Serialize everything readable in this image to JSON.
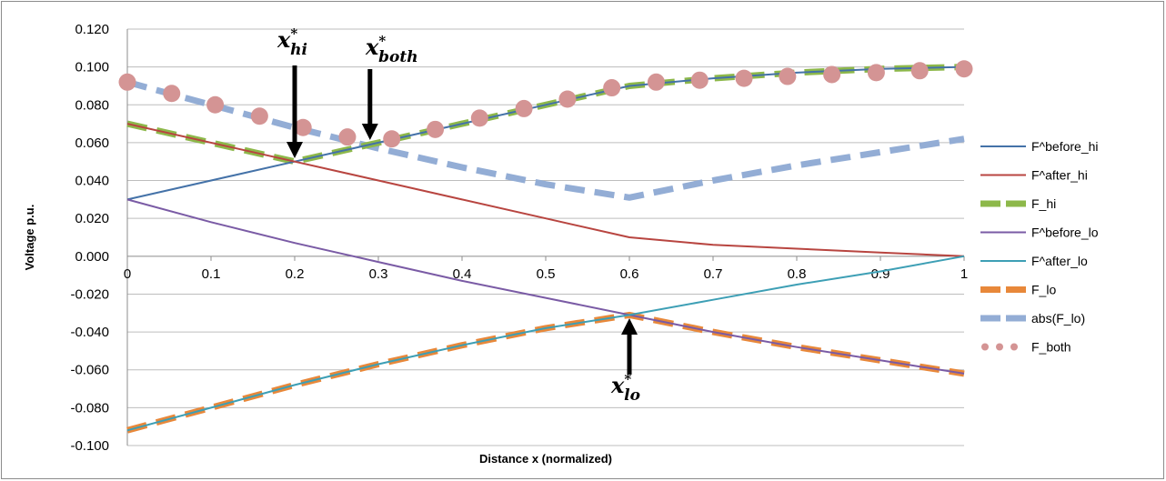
{
  "chart_data": {
    "type": "line",
    "title": "",
    "xlabel": "Distance x (normalized)",
    "ylabel": "Voltage p.u.",
    "xlim": [
      0,
      1
    ],
    "ylim": [
      -0.1,
      0.12
    ],
    "grid": true,
    "legend_position": "right",
    "x_ticks": [
      "0",
      "0.1",
      "0.2",
      "0.3",
      "0.4",
      "0.5",
      "0.6",
      "0.7",
      "0.8",
      "0.9",
      "1"
    ],
    "y_ticks": [
      "0.120",
      "0.100",
      "0.080",
      "0.060",
      "0.040",
      "0.020",
      "0.000",
      "-0.020",
      "-0.040",
      "-0.060",
      "-0.080",
      "-0.100"
    ],
    "series": [
      {
        "name": "F^before_hi",
        "color": "#4472a8",
        "style": "solid",
        "points": [
          [
            0,
            0.03
          ],
          [
            0.2,
            0.05
          ],
          [
            0.3,
            0.06
          ],
          [
            0.4,
            0.07
          ],
          [
            0.5,
            0.08
          ],
          [
            0.6,
            0.09
          ],
          [
            0.7,
            0.094
          ],
          [
            0.8,
            0.097
          ],
          [
            0.9,
            0.099
          ],
          [
            1.0,
            0.1
          ]
        ]
      },
      {
        "name": "F^after_hi",
        "color": "#b84540",
        "style": "solid",
        "points": [
          [
            0,
            0.07
          ],
          [
            0.2,
            0.05
          ],
          [
            0.3,
            0.04
          ],
          [
            0.4,
            0.03
          ],
          [
            0.5,
            0.02
          ],
          [
            0.6,
            0.01
          ],
          [
            0.7,
            0.006
          ],
          [
            0.8,
            0.004
          ],
          [
            0.9,
            0.002
          ],
          [
            1.0,
            0.0
          ]
        ]
      },
      {
        "name": "F_hi",
        "color": "#8db84a",
        "style": "dashed",
        "points": [
          [
            0,
            0.07
          ],
          [
            0.1,
            0.06
          ],
          [
            0.2,
            0.05
          ],
          [
            0.3,
            0.06
          ],
          [
            0.4,
            0.07
          ],
          [
            0.5,
            0.08
          ],
          [
            0.6,
            0.09
          ],
          [
            0.7,
            0.094
          ],
          [
            0.8,
            0.097
          ],
          [
            0.9,
            0.099
          ],
          [
            1.0,
            0.1
          ]
        ]
      },
      {
        "name": "F^before_lo",
        "color": "#7a5ba5",
        "style": "solid",
        "points": [
          [
            0,
            0.03
          ],
          [
            0.1,
            0.018
          ],
          [
            0.2,
            0.007
          ],
          [
            0.3,
            -0.003
          ],
          [
            0.4,
            -0.013
          ],
          [
            0.5,
            -0.022
          ],
          [
            0.6,
            -0.031
          ],
          [
            0.7,
            -0.04
          ],
          [
            0.8,
            -0.048
          ],
          [
            0.9,
            -0.055
          ],
          [
            1.0,
            -0.062
          ]
        ]
      },
      {
        "name": "F^after_lo",
        "color": "#3d9fb5",
        "style": "solid",
        "points": [
          [
            0,
            -0.092
          ],
          [
            0.1,
            -0.08
          ],
          [
            0.2,
            -0.068
          ],
          [
            0.3,
            -0.057
          ],
          [
            0.4,
            -0.047
          ],
          [
            0.5,
            -0.038
          ],
          [
            0.6,
            -0.031
          ],
          [
            0.7,
            -0.023
          ],
          [
            0.8,
            -0.015
          ],
          [
            0.9,
            -0.008
          ],
          [
            1.0,
            0.0
          ]
        ]
      },
      {
        "name": "F_lo",
        "color": "#e8883a",
        "style": "dashed",
        "points": [
          [
            0,
            -0.092
          ],
          [
            0.1,
            -0.08
          ],
          [
            0.2,
            -0.068
          ],
          [
            0.3,
            -0.057
          ],
          [
            0.4,
            -0.047
          ],
          [
            0.5,
            -0.038
          ],
          [
            0.6,
            -0.031
          ],
          [
            0.7,
            -0.04
          ],
          [
            0.8,
            -0.048
          ],
          [
            0.9,
            -0.055
          ],
          [
            1.0,
            -0.062
          ]
        ]
      },
      {
        "name": "abs(F_lo)",
        "color": "#93add5",
        "style": "dashed",
        "points": [
          [
            0,
            0.092
          ],
          [
            0.1,
            0.08
          ],
          [
            0.2,
            0.068
          ],
          [
            0.3,
            0.057
          ],
          [
            0.4,
            0.047
          ],
          [
            0.5,
            0.038
          ],
          [
            0.6,
            0.031
          ],
          [
            0.7,
            0.04
          ],
          [
            0.8,
            0.048
          ],
          [
            0.9,
            0.055
          ],
          [
            1.0,
            0.062
          ]
        ]
      },
      {
        "name": "F_both",
        "color": "#d49494",
        "style": "dots",
        "points": [
          [
            0,
            0.092
          ],
          [
            0.053,
            0.086
          ],
          [
            0.105,
            0.08
          ],
          [
            0.158,
            0.074
          ],
          [
            0.21,
            0.068
          ],
          [
            0.263,
            0.063
          ],
          [
            0.316,
            0.062
          ],
          [
            0.368,
            0.067
          ],
          [
            0.421,
            0.073
          ],
          [
            0.474,
            0.078
          ],
          [
            0.526,
            0.083
          ],
          [
            0.579,
            0.089
          ],
          [
            0.632,
            0.092
          ],
          [
            0.684,
            0.093
          ],
          [
            0.737,
            0.094
          ],
          [
            0.789,
            0.095
          ],
          [
            0.842,
            0.096
          ],
          [
            0.895,
            0.097
          ],
          [
            0.947,
            0.098
          ],
          [
            1.0,
            0.099
          ]
        ]
      }
    ],
    "annotations": [
      {
        "base": "x",
        "sup": "*",
        "sub": "hi",
        "x": 0.2,
        "y": 0.05,
        "dir": "down"
      },
      {
        "base": "x",
        "sup": "*",
        "sub": "both",
        "x": 0.29,
        "y": 0.058,
        "dir": "down"
      },
      {
        "base": "x",
        "sup": "*",
        "sub": "lo",
        "x": 0.6,
        "y": -0.031,
        "dir": "up"
      }
    ]
  }
}
